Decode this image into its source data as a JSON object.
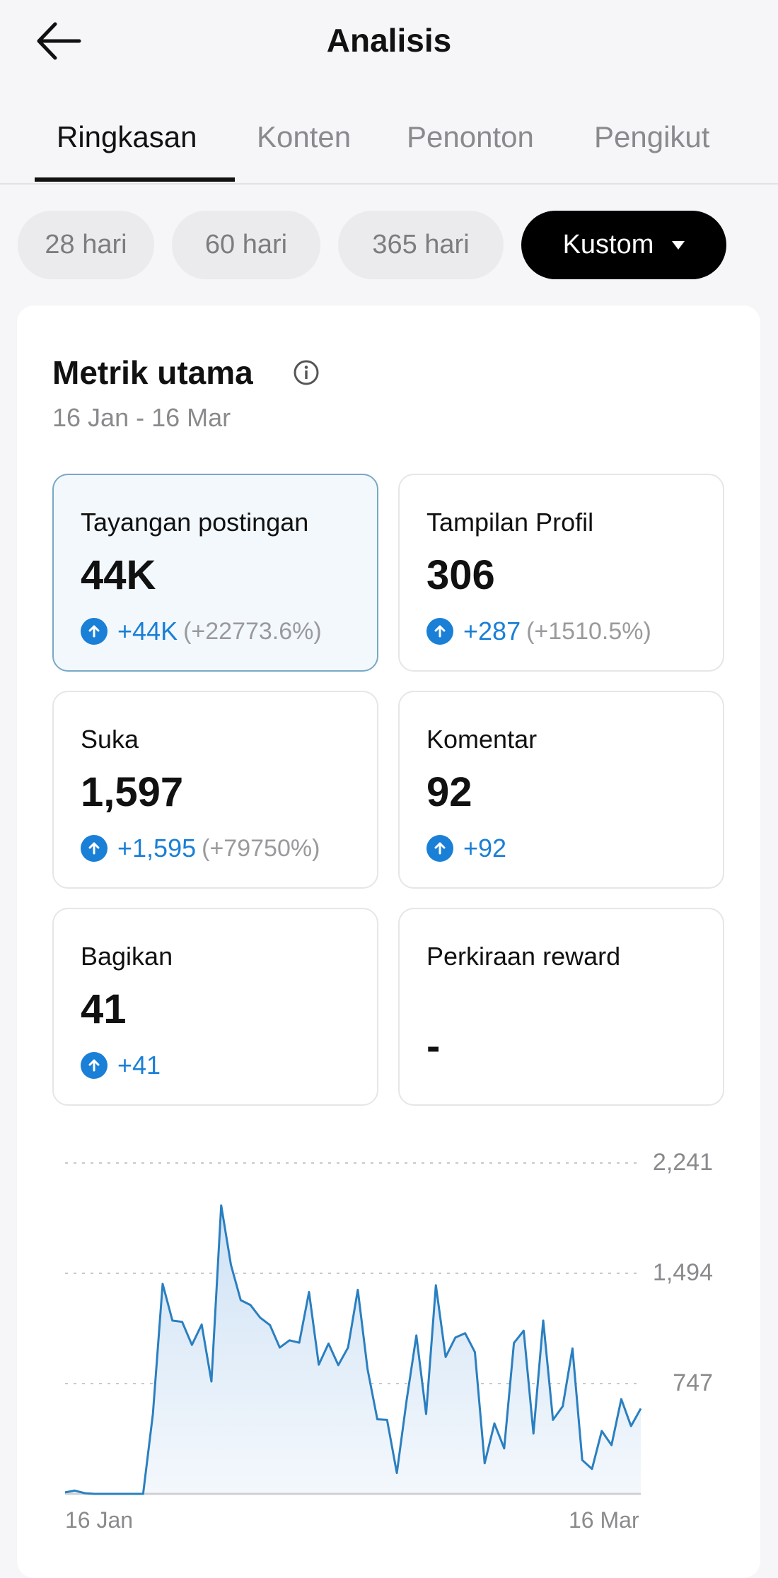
{
  "header": {
    "title": "Analisis",
    "back_icon": "arrow-left-icon"
  },
  "tabs": [
    {
      "label": "Ringkasan",
      "active": true
    },
    {
      "label": "Konten"
    },
    {
      "label": "Penonton"
    },
    {
      "label": "Pengikut"
    }
  ],
  "ranges": [
    {
      "label": "28 hari"
    },
    {
      "label": "60 hari"
    },
    {
      "label": "365 hari"
    },
    {
      "label": "Kustom",
      "selected": true
    }
  ],
  "section": {
    "title": "Metrik utama",
    "date_range": "16 Jan - 16 Mar",
    "info_icon": "info-circle-icon"
  },
  "metrics": [
    {
      "label": "Tayangan postingan",
      "value": "44K",
      "delta": "+44K",
      "pct": "(+22773.6%)",
      "selected": true
    },
    {
      "label": "Tampilan Profil",
      "value": "306",
      "delta": "+287",
      "pct": "(+1510.5%)"
    },
    {
      "label": "Suka",
      "value": "1,597",
      "delta": "+1,595",
      "pct": "(+79750%)"
    },
    {
      "label": "Komentar",
      "value": "92",
      "delta": "+92"
    },
    {
      "label": "Bagikan",
      "value": "41",
      "delta": "+41"
    },
    {
      "label": "Perkiraan reward",
      "value": "-"
    }
  ],
  "colors": {
    "accent": "#1a7fd6",
    "selected_border": "#78a9c4",
    "line": "#2a7fc0"
  },
  "chart_data": {
    "type": "area",
    "x_start": "16 Jan",
    "x_end": "16 Mar",
    "x_tick_labels": [
      "16 Jan",
      "16 Mar"
    ],
    "y_ticks": [
      0,
      747,
      1494,
      2241
    ],
    "y_tick_labels": [
      "747",
      "1,494",
      "2,241"
    ],
    "ylim": [
      0,
      2241
    ],
    "grid": true,
    "values": [
      10,
      22,
      5,
      0,
      0,
      0,
      0,
      0,
      0,
      541,
      1422,
      1174,
      1165,
      1009,
      1147,
      761,
      1954,
      1551,
      1312,
      1279,
      1193,
      1143,
      991,
      1040,
      1024,
      1367,
      875,
      1018,
      872,
      991,
      1382,
      844,
      505,
      501,
      141,
      633,
      1073,
      541,
      1413,
      927,
      1059,
      1088,
      960,
      207,
      477,
      308,
      1022,
      1105,
      409,
      1174,
      501,
      593,
      985,
      229,
      169,
      426,
      330,
      642,
      459,
      578
    ]
  }
}
